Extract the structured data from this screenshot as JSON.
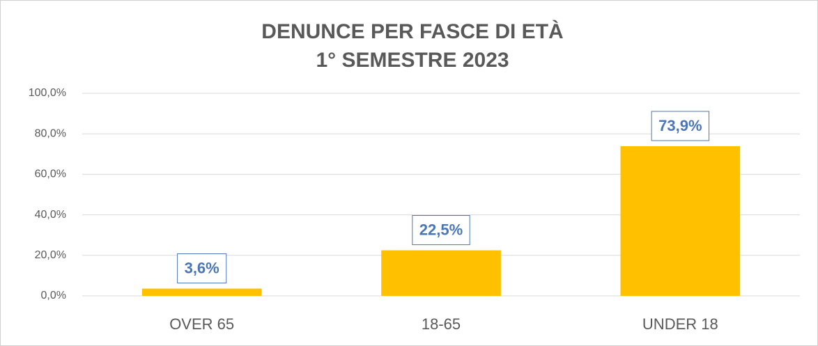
{
  "chart_data": {
    "type": "bar",
    "title": "DENUNCE PER FASCE DI ETÀ",
    "subtitle": "1° SEMESTRE 2023",
    "categories": [
      "OVER 65",
      "18-65",
      "UNDER 18"
    ],
    "values": [
      3.6,
      22.5,
      73.9
    ],
    "value_labels": [
      "3,6%",
      "22,5%",
      "73,9%"
    ],
    "color": "#ffc000",
    "ylim": [
      0,
      100
    ],
    "yticks": [
      {
        "value": 0,
        "label": "0,0%"
      },
      {
        "value": 20,
        "label": "20,0%"
      },
      {
        "value": 40,
        "label": "40,0%"
      },
      {
        "value": 60,
        "label": "60,0%"
      },
      {
        "value": 80,
        "label": "80,0%"
      },
      {
        "value": 100,
        "label": "100,0%"
      }
    ],
    "grid": true
  }
}
